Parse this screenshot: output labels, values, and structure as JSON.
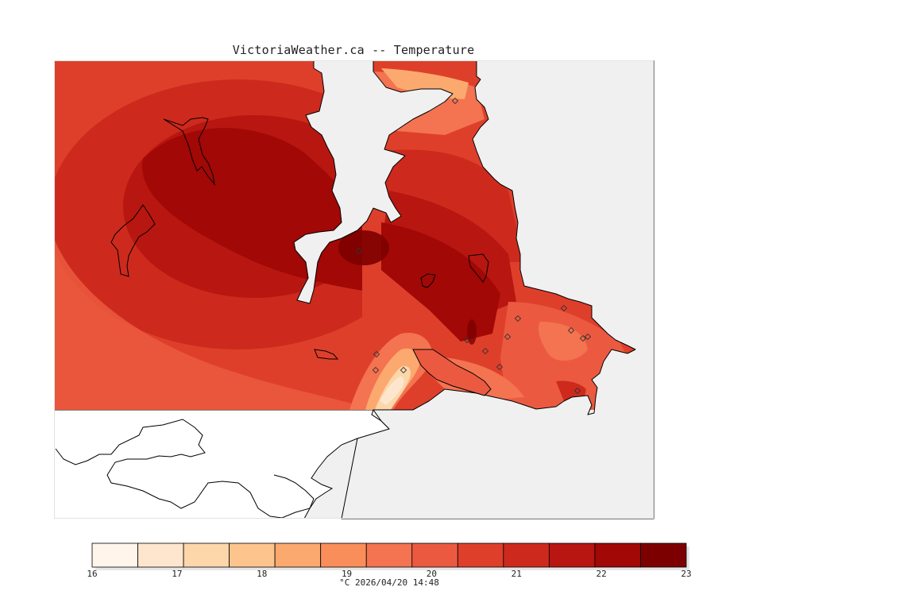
{
  "title": "VictoriaWeather.ca -- Temperature",
  "caption": "°C 2026/04/20 14:48",
  "legend": {
    "min": 16,
    "max": 23,
    "ticks": [
      "16",
      "17",
      "18",
      "19",
      "20",
      "21",
      "22",
      "23"
    ],
    "colors": [
      "#fff5eb",
      "#fee6ce",
      "#fdd6aa",
      "#fdc48d",
      "#fca96f",
      "#fa8e5a",
      "#f47350",
      "#eb5a40",
      "#de3f2b",
      "#cd2a1d",
      "#b81610",
      "#a10806",
      "#7d0000"
    ]
  },
  "map": {
    "background": "#f0f0f0",
    "land_color": "#ffffff",
    "stations": [
      [
        452,
        316
      ],
      [
        573,
        127
      ],
      [
        474,
        446
      ],
      [
        473,
        466
      ],
      [
        508,
        466
      ],
      [
        588,
        428
      ],
      [
        611,
        442
      ],
      [
        629,
        462
      ],
      [
        639,
        424
      ],
      [
        652,
        401
      ],
      [
        710,
        388
      ],
      [
        719,
        416
      ],
      [
        734,
        426
      ],
      [
        740,
        424
      ],
      [
        727,
        492
      ]
    ]
  }
}
